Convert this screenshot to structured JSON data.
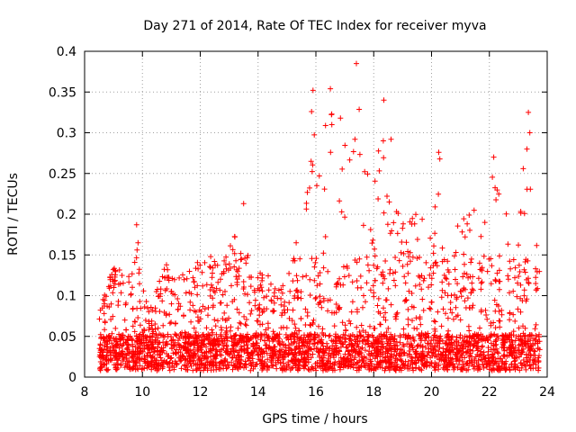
{
  "chart_data": {
    "type": "scatter",
    "title": "Day 271 of 2014, Rate Of TEC Index for receiver myva",
    "xlabel": "GPS time / hours",
    "ylabel": "ROTI / TECUs",
    "xlim": [
      8,
      24
    ],
    "ylim": [
      0,
      0.4
    ],
    "xticks": [
      8,
      10,
      12,
      14,
      16,
      18,
      20,
      22,
      24
    ],
    "xtick_labels": [
      "8",
      "10",
      "12",
      "14",
      "16",
      "18",
      "20",
      "22",
      "24"
    ],
    "yticks": [
      0,
      0.05,
      0.1,
      0.15,
      0.2,
      0.25,
      0.3,
      0.35,
      0.4
    ],
    "ytick_labels": [
      "0",
      "0.05",
      "0.1",
      "0.15",
      "0.2",
      "0.25",
      "0.3",
      "0.35",
      "0.4"
    ],
    "grid": true,
    "marker": "+",
    "series_color": "#ff0000",
    "x_data_range": [
      8.5,
      23.75
    ],
    "envelope": {
      "x": [
        8.5,
        9.0,
        9.5,
        9.8,
        10.2,
        10.8,
        11.2,
        11.8,
        12.3,
        12.8,
        13.4,
        13.8,
        14.3,
        14.8,
        15.3,
        15.8,
        16.0,
        16.2,
        16.5,
        16.8,
        17.2,
        17.4,
        17.7,
        18.0,
        18.3,
        18.6,
        19.0,
        19.5,
        20.0,
        20.3,
        20.8,
        21.3,
        21.8,
        22.1,
        22.5,
        23.0,
        23.3,
        23.75
      ],
      "y_max": [
        0.08,
        0.14,
        0.12,
        0.18,
        0.08,
        0.14,
        0.12,
        0.14,
        0.15,
        0.14,
        0.2,
        0.12,
        0.14,
        0.11,
        0.18,
        0.25,
        0.35,
        0.3,
        0.35,
        0.3,
        0.28,
        0.38,
        0.25,
        0.26,
        0.32,
        0.21,
        0.2,
        0.2,
        0.23,
        0.27,
        0.2,
        0.2,
        0.22,
        0.27,
        0.2,
        0.23,
        0.32,
        0.19
      ]
    },
    "highlight_points": [
      {
        "x": 9.8,
        "y": 0.187
      },
      {
        "x": 9.85,
        "y": 0.165
      },
      {
        "x": 13.5,
        "y": 0.213
      },
      {
        "x": 15.9,
        "y": 0.352
      },
      {
        "x": 15.85,
        "y": 0.326
      },
      {
        "x": 16.5,
        "y": 0.354
      },
      {
        "x": 16.55,
        "y": 0.31
      },
      {
        "x": 16.85,
        "y": 0.318
      },
      {
        "x": 17.4,
        "y": 0.385
      },
      {
        "x": 17.35,
        "y": 0.292
      },
      {
        "x": 18.35,
        "y": 0.34
      },
      {
        "x": 18.6,
        "y": 0.292
      },
      {
        "x": 20.25,
        "y": 0.276
      },
      {
        "x": 22.15,
        "y": 0.27
      },
      {
        "x": 23.35,
        "y": 0.325
      },
      {
        "x": 23.4,
        "y": 0.3
      },
      {
        "x": 23.3,
        "y": 0.28
      }
    ]
  }
}
